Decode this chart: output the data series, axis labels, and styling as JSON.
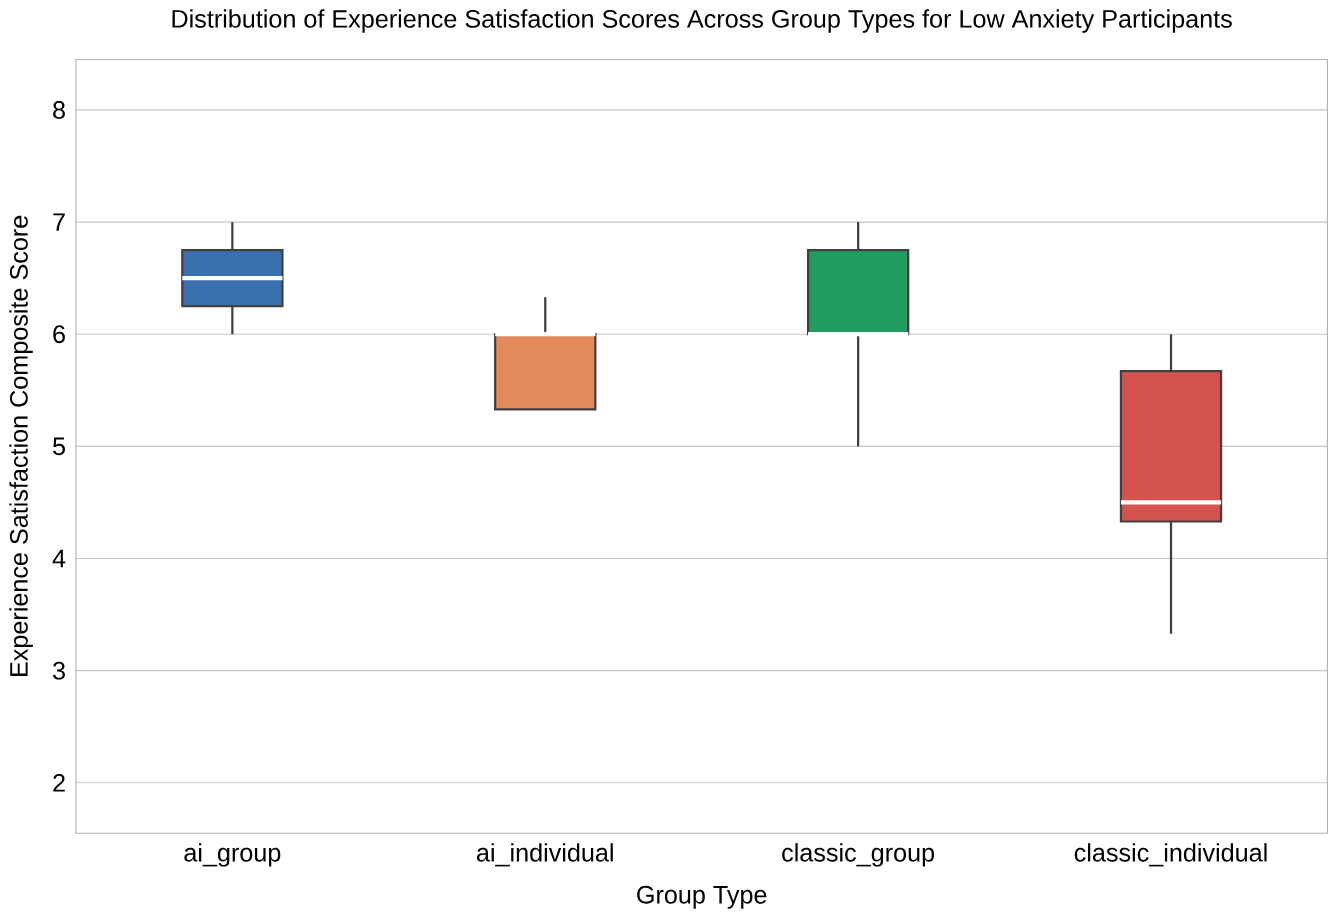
{
  "chart_data": {
    "type": "box",
    "title": "Distribution of Experience Satisfaction Scores Across Group Types for Low Anxiety Participants",
    "xlabel": "Group Type",
    "ylabel": "Experience Satisfaction Composite Score",
    "categories": [
      "ai_group",
      "ai_individual",
      "classic_group",
      "classic_individual"
    ],
    "colors": [
      "#3b70b0",
      "#e38a5d",
      "#1f9e5f",
      "#d5534f"
    ],
    "boxes": [
      {
        "low": 6.0,
        "q1": 6.25,
        "median": 6.5,
        "q3": 6.75,
        "high": 7.0
      },
      {
        "low": 5.33,
        "q1": 5.33,
        "median": 6.0,
        "q3": 6.0,
        "high": 6.33
      },
      {
        "low": 5.0,
        "q1": 6.0,
        "median": 6.0,
        "q3": 6.75,
        "high": 7.0
      },
      {
        "low": 3.33,
        "q1": 4.33,
        "median": 4.5,
        "q3": 5.67,
        "high": 6.0
      }
    ],
    "ylim": [
      1.55,
      8.45
    ],
    "yticks": [
      2,
      3,
      4,
      5,
      6,
      7,
      8
    ],
    "grid": "y"
  }
}
